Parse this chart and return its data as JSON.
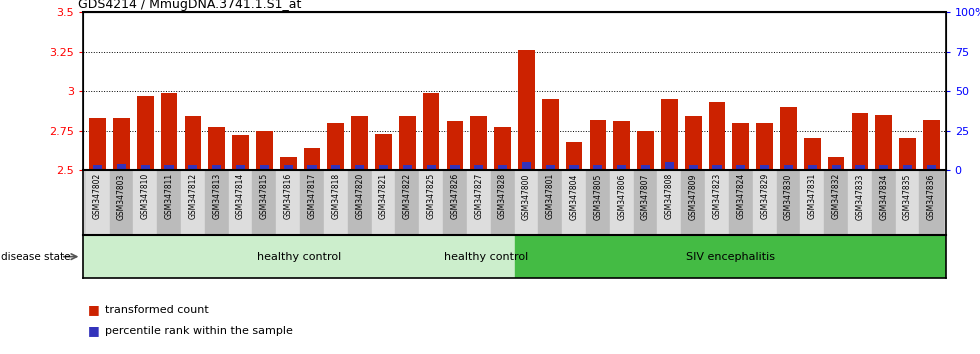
{
  "title": "GDS4214 / MmugDNA.3741.1.S1_at",
  "samples": [
    "GSM347802",
    "GSM347803",
    "GSM347810",
    "GSM347811",
    "GSM347812",
    "GSM347813",
    "GSM347814",
    "GSM347815",
    "GSM347816",
    "GSM347817",
    "GSM347818",
    "GSM347820",
    "GSM347821",
    "GSM347822",
    "GSM347825",
    "GSM347826",
    "GSM347827",
    "GSM347828",
    "GSM347800",
    "GSM347801",
    "GSM347804",
    "GSM347805",
    "GSM347806",
    "GSM347807",
    "GSM347808",
    "GSM347809",
    "GSM347823",
    "GSM347824",
    "GSM347829",
    "GSM347830",
    "GSM347831",
    "GSM347832",
    "GSM347833",
    "GSM347834",
    "GSM347835",
    "GSM347836"
  ],
  "red_values": [
    2.83,
    2.83,
    2.97,
    2.99,
    2.84,
    2.77,
    2.72,
    2.75,
    2.58,
    2.64,
    2.8,
    2.84,
    2.73,
    2.84,
    2.99,
    2.81,
    2.84,
    2.77,
    3.26,
    2.95,
    2.68,
    2.82,
    2.81,
    2.75,
    2.95,
    2.84,
    2.93,
    2.8,
    2.8,
    2.9,
    2.7,
    2.58,
    2.86,
    2.85,
    2.7,
    2.82
  ],
  "blue_values": [
    3,
    4,
    3,
    3,
    3,
    3,
    3,
    3,
    3,
    3,
    3,
    3,
    3,
    3,
    3,
    3,
    3,
    3,
    5,
    3,
    3,
    3,
    3,
    3,
    5,
    3,
    3,
    3,
    3,
    3,
    3,
    3,
    3,
    3,
    3,
    3
  ],
  "healthy_count": 18,
  "ylim_left": [
    2.5,
    3.5
  ],
  "ylim_right": [
    0,
    100
  ],
  "yticks_left": [
    2.5,
    2.75,
    3.0,
    3.25,
    3.5
  ],
  "yticks_right": [
    0,
    25,
    50,
    75,
    100
  ],
  "ytick_labels_left": [
    "2.5",
    "2.75",
    "3",
    "3.25",
    "3.5"
  ],
  "ytick_labels_right": [
    "0",
    "25",
    "50",
    "75",
    "100%"
  ],
  "grid_lines": [
    2.75,
    3.0,
    3.25
  ],
  "bar_color_red": "#cc2200",
  "bar_color_blue": "#3333bb",
  "healthy_color": "#cceecc",
  "siv_color": "#44bb44",
  "xtick_bg": "#cccccc",
  "healthy_label": "healthy control",
  "siv_label": "SIV encephalitis",
  "disease_state_label": "disease state",
  "legend_red": "transformed count",
  "legend_blue": "percentile rank within the sample",
  "bar_width": 0.7,
  "base_value": 2.5
}
